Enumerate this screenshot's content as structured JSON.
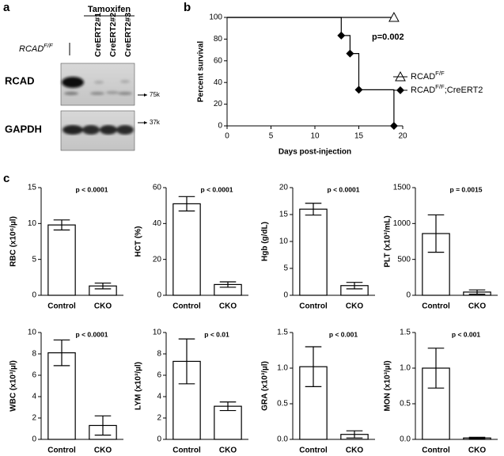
{
  "panel_labels": [
    "a",
    "b",
    "c"
  ],
  "blot": {
    "treatment": "Tamoxifen",
    "genotype": "RCADF/F",
    "lanes": [
      "CreERT2#1",
      "CreERT2#2",
      "CreERT2#3"
    ],
    "rows": [
      {
        "protein": "RCAD",
        "marker": "75k"
      },
      {
        "protein": "GAPDH",
        "marker": "37k"
      }
    ]
  },
  "chart_data": [
    {
      "type": "line",
      "xlabel": "Days post-injection",
      "ylabel": "Percent survival",
      "annotation": "p=0.002",
      "xlim": [
        0,
        20
      ],
      "xticks": [
        0,
        5,
        10,
        15,
        20
      ],
      "ylim": [
        0,
        100
      ],
      "yticks": [
        0,
        20,
        40,
        60,
        80,
        100
      ],
      "step": true,
      "legend": "right",
      "series": [
        {
          "name": "RCADF/F",
          "marker": "triangle",
          "color": "#000000",
          "x": [
            0,
            19
          ],
          "values": [
            100,
            100
          ]
        },
        {
          "name": "RCADF/F;CreERT2",
          "marker": "diamond",
          "color": "#000000",
          "x": [
            0,
            13,
            14,
            15,
            19
          ],
          "values": [
            100,
            83.3,
            66.7,
            33.3,
            0
          ]
        }
      ]
    },
    {
      "type": "bar",
      "ylabel": "RBC (x10⁶/µl)",
      "annotation": "p < 0.0001",
      "categories": [
        "Control",
        "CKO"
      ],
      "values": [
        9.8,
        1.3
      ],
      "errors": [
        0.7,
        0.4
      ],
      "ylim": [
        0,
        15
      ],
      "yticks": [
        0,
        5,
        10,
        15
      ],
      "color": "#ffffff"
    },
    {
      "type": "bar",
      "ylabel": "HCT (%)",
      "annotation": "p < 0.0001",
      "categories": [
        "Control",
        "CKO"
      ],
      "values": [
        51,
        6
      ],
      "errors": [
        4,
        1.5
      ],
      "ylim": [
        0,
        60
      ],
      "yticks": [
        0,
        20,
        40,
        60
      ],
      "color": "#ffffff"
    },
    {
      "type": "bar",
      "ylabel": "Hgb (g/dL)",
      "annotation": "p < 0.0001",
      "categories": [
        "Control",
        "CKO"
      ],
      "values": [
        16,
        1.8
      ],
      "errors": [
        1.1,
        0.6
      ],
      "ylim": [
        0,
        20
      ],
      "yticks": [
        0,
        5,
        10,
        15,
        20
      ],
      "color": "#ffffff"
    },
    {
      "type": "bar",
      "ylabel": "PLT (x10³/mL)",
      "annotation": "p = 0.0015",
      "categories": [
        "Control",
        "CKO"
      ],
      "values": [
        860,
        45
      ],
      "errors": [
        260,
        30
      ],
      "ylim": [
        0,
        1500
      ],
      "yticks": [
        0,
        500,
        1000,
        1500
      ],
      "color": "#ffffff"
    },
    {
      "type": "bar",
      "ylabel": "WBC (x10³/µl)",
      "annotation": "p < 0.0001",
      "categories": [
        "Control",
        "CKO"
      ],
      "values": [
        8.1,
        1.3
      ],
      "errors": [
        1.2,
        0.9
      ],
      "ylim": [
        0,
        10
      ],
      "yticks": [
        0,
        2,
        4,
        6,
        8,
        10
      ],
      "color": "#ffffff"
    },
    {
      "type": "bar",
      "ylabel": "LYM (x10³/µl)",
      "annotation": "p < 0.01",
      "categories": [
        "Control",
        "CKO"
      ],
      "values": [
        7.3,
        3.1
      ],
      "errors": [
        2.1,
        0.4
      ],
      "ylim": [
        0,
        10
      ],
      "yticks": [
        0,
        2,
        4,
        6,
        8,
        10
      ],
      "color": "#ffffff"
    },
    {
      "type": "bar",
      "ylabel": "GRA (x10³/µl)",
      "annotation": "p < 0.001",
      "categories": [
        "Control",
        "CKO"
      ],
      "values": [
        1.02,
        0.07
      ],
      "errors": [
        0.28,
        0.05
      ],
      "ylim": [
        0,
        1.5
      ],
      "yticks": [
        {
          "value": 0,
          "label": "0.0"
        },
        0.5,
        {
          "value": 1,
          "label": "1.0"
        },
        1.5
      ],
      "color": "#ffffff"
    },
    {
      "type": "bar",
      "ylabel": "MON (x10³/µl)",
      "annotation": "p < 0.001",
      "categories": [
        "Control",
        "CKO"
      ],
      "values": [
        1.0,
        0.02
      ],
      "errors": [
        0.28,
        0.01
      ],
      "ylim": [
        0,
        1.5
      ],
      "yticks": [
        {
          "value": 0,
          "label": "0.0"
        },
        0.5,
        {
          "value": 1,
          "label": "1.0"
        },
        1.5
      ],
      "color": "#ffffff"
    }
  ]
}
